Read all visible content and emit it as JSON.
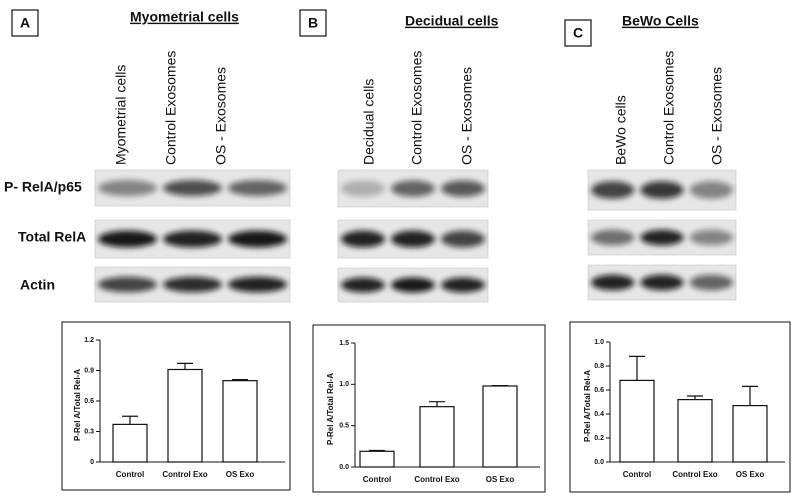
{
  "row_labels": [
    "P- RelA/p65",
    "Total RelA",
    "Actin"
  ],
  "panels": [
    {
      "letter": "A",
      "title": "Myometrial cells",
      "lanes": [
        "Myometrial  cells",
        "Control Exosomes",
        "OS - Exosomes"
      ]
    },
    {
      "letter": "B",
      "title": "Decidual cells",
      "lanes": [
        "Decidual  cells",
        "Control Exosomes",
        "OS - Exosomes"
      ]
    },
    {
      "letter": "C",
      "title": "BeWo Cells",
      "lanes": [
        "BeWo cells",
        "Control Exosomes",
        "OS - Exosomes"
      ]
    }
  ],
  "chart_data": [
    {
      "type": "bar",
      "y_label": "P-Rel A/Total Rel-A",
      "categories": [
        "Control",
        "Control Exo",
        "OS Exo"
      ],
      "values": [
        0.37,
        0.91,
        0.8
      ],
      "errors": [
        0.08,
        0.06,
        0.01
      ],
      "color": "#ffffff",
      "ylim": [
        0,
        1.2
      ],
      "yticks": [
        0,
        0.3,
        0.6,
        0.9,
        1.2
      ]
    },
    {
      "type": "bar",
      "y_label": "P-Rel A/Total Rel-A",
      "categories": [
        "Control",
        "Control Exo",
        "OS Exo"
      ],
      "values": [
        0.19,
        0.73,
        0.98
      ],
      "errors": [
        0.01,
        0.06,
        0.005
      ],
      "color": "#ffffff",
      "ylim": [
        0,
        1.5
      ],
      "yticks": [
        {
          "value": 0,
          "label": "0.0"
        },
        0.5,
        {
          "value": 1,
          "label": "1.0"
        },
        1.5
      ]
    },
    {
      "type": "bar",
      "y_label": "P-Rel A/Total Rel-A",
      "categories": [
        "Control",
        "Control Exo",
        "OS Exo"
      ],
      "values": [
        0.68,
        0.52,
        0.47
      ],
      "errors": [
        0.2,
        0.03,
        0.16
      ],
      "color": "#ffffff",
      "ylim": [
        0,
        1
      ],
      "yticks": [
        {
          "value": 0,
          "label": "0.0"
        },
        0.2,
        0.4,
        0.6,
        0.8,
        {
          "value": 1,
          "label": "1.0"
        }
      ]
    }
  ]
}
